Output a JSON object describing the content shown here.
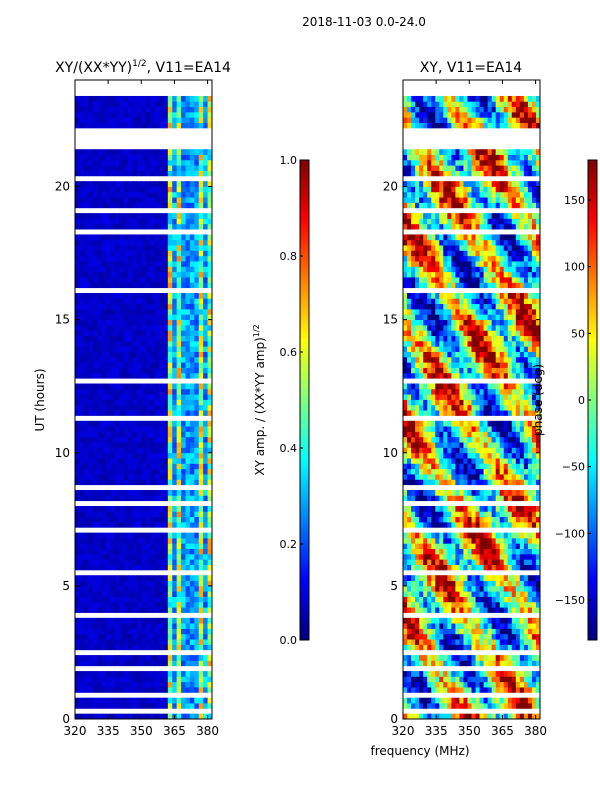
{
  "figure_title": "2018-11-03 0.0-24.0",
  "colors": {
    "jet": [
      "#00007f",
      "#0000ff",
      "#007fff",
      "#00ffff",
      "#7fff7f",
      "#ffff00",
      "#ff7f00",
      "#ff0000",
      "#7f0000"
    ],
    "gap": "#ffffff",
    "axis": "#000000"
  },
  "chart_data": [
    {
      "type": "heatmap",
      "title": "XY/(XX*YY)^{1/2}, V11=EA14",
      "title_main": "XY/(XX*YY)",
      "title_sup": "1/2",
      "title_tail": ", V11=EA14",
      "xlabel": "",
      "ylabel": "UT (hours)",
      "xlim": [
        320,
        382
      ],
      "ylim": [
        0,
        24
      ],
      "xticks": [
        320,
        335,
        350,
        365,
        380
      ],
      "yticks": [
        0,
        5,
        10,
        15,
        20
      ],
      "colorbar": {
        "label": "XY amp. / (XX*YY amp)^{1/2}",
        "label_main": "XY amp. / (XX*YY amp)",
        "label_sup": "1/2",
        "range": [
          0.0,
          1.0
        ],
        "ticks": [
          "0.0",
          "0.2",
          "0.4",
          "0.6",
          "0.8",
          "1.0"
        ]
      },
      "baseline_value": 0.04,
      "active_band_MHz": [
        362,
        382
      ],
      "active_channels_MHz": [
        365,
        370,
        374,
        379
      ],
      "active_amplitude_range": [
        0.3,
        0.75
      ]
    },
    {
      "type": "heatmap",
      "title": "XY, V11=EA14",
      "xlabel": "frequency (MHz)",
      "ylabel": "",
      "xlim": [
        320,
        382
      ],
      "ylim": [
        0,
        24
      ],
      "xticks": [
        320,
        335,
        350,
        365,
        380
      ],
      "yticks": [
        0,
        5,
        10,
        15,
        20
      ],
      "colorbar": {
        "label": "phase (deg)",
        "range": [
          -180,
          180
        ],
        "ticks": [
          "−150",
          "−100",
          "−50",
          "0",
          "50",
          "100",
          "150"
        ]
      }
    }
  ],
  "time_gaps_hours": [
    [
      0.3,
      0.4
    ],
    [
      0.55,
      0.6
    ],
    [
      0.9,
      1.0
    ],
    [
      1.25,
      1.3
    ],
    [
      1.8,
      1.95
    ],
    [
      2.15,
      2.2
    ],
    [
      2.45,
      2.55
    ],
    [
      3.2,
      3.3
    ],
    [
      3.9,
      4.0
    ],
    [
      4.55,
      4.6
    ],
    [
      5.15,
      5.2
    ],
    [
      5.5,
      5.55
    ],
    [
      6.2,
      6.3
    ],
    [
      6.6,
      6.65
    ],
    [
      7.1,
      7.15
    ],
    [
      7.55,
      7.6
    ],
    [
      8.1,
      8.2
    ],
    [
      8.6,
      8.9
    ],
    [
      10.55,
      10.6
    ],
    [
      11.3,
      11.4
    ],
    [
      12.7,
      12.75
    ],
    [
      13.45,
      13.5
    ],
    [
      14.75,
      14.9
    ],
    [
      15.6,
      15.65
    ],
    [
      16.1,
      16.2
    ],
    [
      16.6,
      16.65
    ],
    [
      18.3,
      18.4
    ],
    [
      19.1,
      19.15
    ],
    [
      19.65,
      19.7
    ],
    [
      20.3,
      20.4
    ],
    [
      20.95,
      21.0
    ],
    [
      21.2,
      21.3
    ],
    [
      21.5,
      22.3
    ],
    [
      22.55,
      22.6
    ],
    [
      23.0,
      23.05
    ],
    [
      23.4,
      24.0
    ]
  ]
}
